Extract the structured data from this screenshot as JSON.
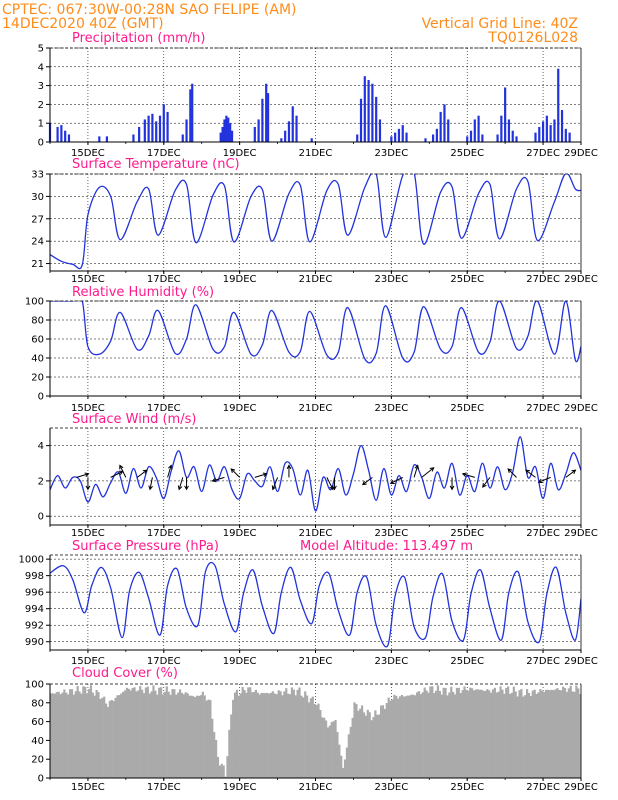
{
  "header": {
    "left_line1": "CPTEC:   067:30W-00:28N  SAO FELIPE (AM)",
    "left_line2": "14DEC2020 40Z (GMT)",
    "right_line1": "Vertical Grid Line: 40Z",
    "right_line2": "TQ0126L028"
  },
  "colors": {
    "header": "#ff8c1a",
    "title": "#ff1a8c",
    "line": "#2233dd",
    "bar": "#2233dd",
    "cloud": "#aaaaaa",
    "arrow": "#000000"
  },
  "x_tick_labels": [
    "15DEC",
    "17DEC",
    "19DEC",
    "21DEC",
    "23DEC",
    "25DEC",
    "27DEC",
    "29DEC"
  ],
  "chart_data": [
    {
      "type": "bar",
      "title": "Precipitation (mm/h)",
      "ylabel": "mm/h",
      "ylim": [
        0,
        5
      ],
      "yticks": [
        0,
        1,
        2,
        3,
        4,
        5
      ],
      "x_days_from_14dec": [
        0.0,
        0.2,
        0.3,
        0.4,
        0.5,
        1.3,
        1.5,
        2.2,
        2.35,
        2.5,
        2.6,
        2.7,
        2.8,
        2.9,
        3.0,
        3.1,
        3.5,
        3.6,
        3.7,
        3.75,
        4.5,
        4.55,
        4.6,
        4.65,
        4.7,
        4.75,
        4.8,
        5.4,
        5.5,
        5.6,
        5.7,
        5.75,
        6.1,
        6.2,
        6.3,
        6.4,
        6.5,
        6.9,
        8.1,
        8.2,
        8.3,
        8.4,
        8.5,
        8.6,
        8.7,
        9.0,
        9.1,
        9.2,
        9.3,
        9.4,
        9.9,
        10.1,
        10.2,
        10.3,
        10.4,
        10.5,
        11.0,
        11.1,
        11.2,
        11.3,
        11.4,
        11.8,
        11.9,
        12.0,
        12.1,
        12.2,
        12.3,
        12.8,
        12.9,
        13.0,
        13.1,
        13.2,
        13.3,
        13.4,
        13.5,
        13.6,
        13.7
      ],
      "values": [
        1.0,
        0.8,
        0.9,
        0.6,
        0.4,
        0.3,
        0.3,
        0.4,
        0.8,
        1.2,
        1.4,
        1.5,
        1.1,
        1.4,
        2.0,
        1.6,
        0.4,
        1.2,
        2.8,
        3.1,
        0.5,
        0.8,
        1.2,
        1.4,
        1.3,
        1.0,
        0.6,
        0.8,
        1.2,
        2.3,
        3.1,
        2.6,
        0.2,
        0.6,
        1.1,
        1.9,
        1.4,
        0.2,
        0.4,
        2.3,
        3.5,
        3.3,
        3.1,
        2.4,
        1.2,
        0.3,
        0.5,
        0.7,
        0.9,
        0.5,
        0.2,
        0.4,
        0.7,
        1.6,
        2.0,
        1.2,
        0.3,
        0.6,
        1.2,
        1.4,
        0.4,
        0.4,
        1.4,
        2.9,
        1.2,
        0.6,
        0.3,
        0.5,
        0.8,
        1.1,
        1.4,
        0.9,
        1.2,
        3.9,
        1.7,
        0.7,
        0.5
      ]
    },
    {
      "type": "line",
      "title": "Surface Temperature (nC)",
      "ylabel": "nC",
      "ylim": [
        20,
        33
      ],
      "yticks": [
        21,
        24,
        27,
        30,
        33
      ],
      "x_days_from_14dec": [
        0,
        0.3,
        0.6,
        0.85,
        1.0,
        1.3,
        1.6,
        1.85,
        2.3,
        2.6,
        2.85,
        3.3,
        3.6,
        3.85,
        4.3,
        4.6,
        4.85,
        5.3,
        5.6,
        5.85,
        6.3,
        6.6,
        6.85,
        7.3,
        7.6,
        7.85,
        8.3,
        8.6,
        8.85,
        9.3,
        9.6,
        9.85,
        10.3,
        10.6,
        10.85,
        11.3,
        11.6,
        11.85,
        12.3,
        12.6,
        12.85,
        13.3,
        13.6,
        13.85,
        14.0
      ],
      "values": [
        22.2,
        21.3,
        20.9,
        20.8,
        27.5,
        31.2,
        30.0,
        24.2,
        29.3,
        31.0,
        24.8,
        30.8,
        31.6,
        23.8,
        30.2,
        31.4,
        23.9,
        30.0,
        30.9,
        24.0,
        30.4,
        31.5,
        23.9,
        30.8,
        31.6,
        24.8,
        31.2,
        33.0,
        24.5,
        32.8,
        33.2,
        23.6,
        30.6,
        31.3,
        24.4,
        30.4,
        31.6,
        24.3,
        31.0,
        32.0,
        24.1,
        29.3,
        33.1,
        31.0,
        30.8
      ]
    },
    {
      "type": "line",
      "title": "Relative Humidity (%)",
      "ylabel": "%",
      "ylim": [
        0,
        100
      ],
      "yticks": [
        0,
        20,
        40,
        60,
        80,
        100
      ],
      "x_days_from_14dec": [
        0,
        0.3,
        0.6,
        0.85,
        1.0,
        1.3,
        1.6,
        1.85,
        2.3,
        2.6,
        2.85,
        3.3,
        3.6,
        3.85,
        4.3,
        4.6,
        4.85,
        5.3,
        5.6,
        5.85,
        6.3,
        6.6,
        6.85,
        7.3,
        7.6,
        7.85,
        8.3,
        8.6,
        8.85,
        9.3,
        9.6,
        9.85,
        10.3,
        10.6,
        10.85,
        11.3,
        11.6,
        11.85,
        12.3,
        12.6,
        12.85,
        13.3,
        13.6,
        13.85,
        14.0
      ],
      "values": [
        100,
        100,
        100,
        100,
        52,
        44,
        58,
        88,
        49,
        63,
        90,
        45,
        60,
        96,
        49,
        52,
        88,
        44,
        54,
        90,
        46,
        47,
        89,
        43,
        46,
        93,
        39,
        45,
        95,
        40,
        46,
        94,
        49,
        52,
        93,
        46,
        57,
        100,
        50,
        63,
        100,
        44,
        100,
        38,
        52
      ]
    },
    {
      "type": "line",
      "title": "Surface Wind (m/s)",
      "ylabel": "m/s",
      "ylim": [
        -0.5,
        5.0
      ],
      "yticks": [
        0,
        2,
        4
      ],
      "x_days_from_14dec": [
        0,
        0.2,
        0.4,
        0.6,
        0.8,
        1.0,
        1.2,
        1.4,
        1.6,
        1.8,
        2.0,
        2.2,
        2.4,
        2.6,
        2.8,
        3.0,
        3.2,
        3.4,
        3.6,
        3.8,
        4.0,
        4.2,
        4.4,
        4.6,
        4.8,
        5.0,
        5.2,
        5.4,
        5.6,
        5.8,
        6.0,
        6.2,
        6.4,
        6.6,
        6.8,
        7.0,
        7.2,
        7.4,
        7.6,
        7.8,
        8.0,
        8.2,
        8.4,
        8.6,
        8.8,
        9.0,
        9.2,
        9.4,
        9.6,
        9.8,
        10.0,
        10.2,
        10.4,
        10.6,
        10.8,
        11.0,
        11.2,
        11.4,
        11.6,
        11.8,
        12.0,
        12.2,
        12.4,
        12.6,
        12.8,
        13.0,
        13.2,
        13.4,
        13.6,
        13.8,
        14.0
      ],
      "values": [
        1.5,
        2.3,
        1.6,
        2.2,
        2.0,
        0.8,
        1.8,
        1.1,
        1.9,
        2.5,
        1.3,
        2.7,
        1.6,
        2.8,
        2.2,
        1.0,
        2.6,
        3.7,
        2.2,
        2.8,
        1.4,
        2.9,
        2.0,
        2.8,
        1.5,
        1.0,
        2.4,
        2.0,
        1.7,
        2.8,
        1.4,
        3.0,
        2.7,
        1.2,
        2.6,
        0.3,
        2.2,
        1.5,
        2.7,
        1.2,
        2.4,
        4.0,
        2.6,
        0.9,
        2.7,
        1.2,
        2.3,
        1.4,
        2.9,
        2.2,
        1.0,
        2.5,
        1.6,
        3.0,
        1.2,
        2.3,
        1.4,
        3.0,
        1.6,
        2.8,
        1.5,
        2.5,
        4.5,
        2.2,
        2.8,
        1.0,
        3.0,
        1.5,
        2.4,
        3.6,
        2.6
      ],
      "vector_arrows": [
        {
          "x": 0.7,
          "u": 1,
          "v": 0.3
        },
        {
          "x": 1.0,
          "u": 0,
          "v": -1
        },
        {
          "x": 1.6,
          "u": 1,
          "v": 0.5
        },
        {
          "x": 2.0,
          "u": -0.5,
          "v": 1
        },
        {
          "x": 2.3,
          "u": 0.8,
          "v": 0.6
        },
        {
          "x": 2.7,
          "u": -0.2,
          "v": -1
        },
        {
          "x": 3.1,
          "u": 0.3,
          "v": 1
        },
        {
          "x": 3.5,
          "u": -0.3,
          "v": -1
        },
        {
          "x": 3.6,
          "u": 0,
          "v": -1
        },
        {
          "x": 4.6,
          "u": -1,
          "v": -0.3
        },
        {
          "x": 5.0,
          "u": -0.7,
          "v": 0.7
        },
        {
          "x": 5.4,
          "u": 1,
          "v": 0.3
        },
        {
          "x": 6.0,
          "u": -0.4,
          "v": -1
        },
        {
          "x": 6.3,
          "u": 0,
          "v": 1
        },
        {
          "x": 7.3,
          "u": 0.5,
          "v": -1
        },
        {
          "x": 7.5,
          "u": 0,
          "v": -1
        },
        {
          "x": 8.5,
          "u": -0.8,
          "v": -0.6
        },
        {
          "x": 9.3,
          "u": -1,
          "v": -0.5
        },
        {
          "x": 9.6,
          "u": 0.3,
          "v": 1
        },
        {
          "x": 9.8,
          "u": 1,
          "v": 0.8
        },
        {
          "x": 10.6,
          "u": 0,
          "v": -1
        },
        {
          "x": 11.2,
          "u": -1,
          "v": 0.3
        },
        {
          "x": 11.6,
          "u": -0.6,
          "v": -0.8
        },
        {
          "x": 12.3,
          "u": -0.7,
          "v": 0.7
        },
        {
          "x": 12.8,
          "u": -0.8,
          "v": 0.6
        },
        {
          "x": 13.2,
          "u": -1,
          "v": -0.4
        },
        {
          "x": 13.6,
          "u": 0.8,
          "v": 0.6
        }
      ]
    },
    {
      "type": "line",
      "title": "Surface Pressure (hPa)",
      "ylabel": "hPa",
      "ylim": [
        989,
        1000.5
      ],
      "yticks": [
        990,
        992,
        994,
        996,
        998,
        1000
      ],
      "annotation": "Model Altitude: 113.497 m",
      "x_days_from_14dec": [
        0,
        0.35,
        0.6,
        0.9,
        1.1,
        1.35,
        1.6,
        1.9,
        2.1,
        2.35,
        2.6,
        2.9,
        3.1,
        3.35,
        3.6,
        3.9,
        4.1,
        4.35,
        4.6,
        4.9,
        5.1,
        5.35,
        5.6,
        5.9,
        6.1,
        6.35,
        6.6,
        6.9,
        7.1,
        7.35,
        7.6,
        7.9,
        8.1,
        8.35,
        8.6,
        8.9,
        9.1,
        9.35,
        9.6,
        9.9,
        10.1,
        10.35,
        10.6,
        10.9,
        11.1,
        11.35,
        11.6,
        11.9,
        12.1,
        12.35,
        12.6,
        12.9,
        13.1,
        13.35,
        13.6,
        13.85,
        14.0
      ],
      "values": [
        998.3,
        999.2,
        997.5,
        993.5,
        996.8,
        999.0,
        996.5,
        990.5,
        996.2,
        998.4,
        995.3,
        990.8,
        996.8,
        998.8,
        994.0,
        992.0,
        998.5,
        999.2,
        994.5,
        991.2,
        995.8,
        998.7,
        994.3,
        991.0,
        996.0,
        999.0,
        995.0,
        992.2,
        996.8,
        998.3,
        993.8,
        990.8,
        996.0,
        997.8,
        992.0,
        989.5,
        995.6,
        997.8,
        991.8,
        990.5,
        995.5,
        998.2,
        992.5,
        990.2,
        995.8,
        998.7,
        994.0,
        990.2,
        996.0,
        998.4,
        992.4,
        990.0,
        995.8,
        999.0,
        993.5,
        990.2,
        995.2
      ]
    },
    {
      "type": "bar",
      "title": "Cloud Cover (%)",
      "ylabel": "%",
      "ylim": [
        0,
        100
      ],
      "yticks": [
        0,
        20,
        40,
        60,
        80,
        100
      ],
      "x_days_from_14dec": [
        0,
        0.5,
        1.0,
        1.3,
        1.5,
        1.6,
        2.0,
        2.5,
        3.0,
        3.5,
        3.8,
        4.0,
        4.2,
        4.4,
        4.6,
        4.8,
        5.0,
        5.2,
        5.5,
        6.0,
        6.5,
        7.0,
        7.3,
        7.5,
        7.7,
        8.0,
        8.5,
        9.0,
        9.5,
        10.0,
        10.5,
        11.0,
        11.5,
        12.0,
        12.5,
        13.0,
        13.5,
        14.0
      ],
      "values": [
        90,
        92,
        95,
        88,
        78,
        82,
        95,
        94,
        93,
        91,
        86,
        90,
        80,
        22,
        5,
        88,
        92,
        95,
        90,
        91,
        93,
        80,
        55,
        62,
        10,
        78,
        65,
        86,
        88,
        95,
        92,
        95,
        93,
        94,
        90,
        93,
        95,
        94
      ]
    }
  ]
}
